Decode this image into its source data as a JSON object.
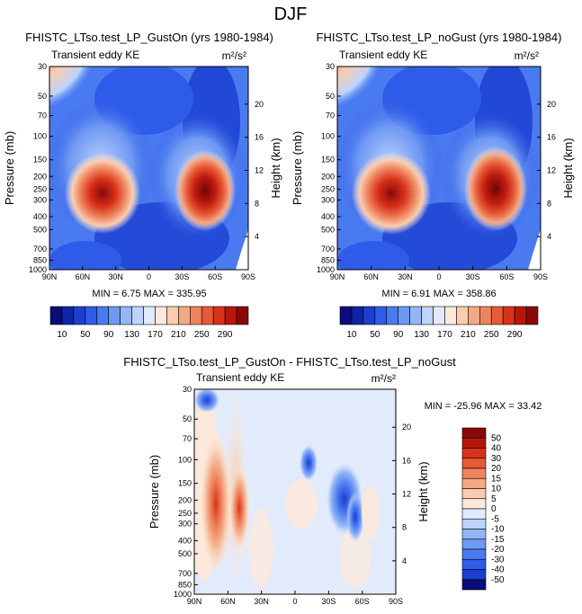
{
  "figure": {
    "title": "DJF"
  },
  "chart_data": [
    {
      "type": "heatmap",
      "panel_id": "gust_on",
      "title": "FHISTC_LTso.test_LP_GustOn (yrs 1980-1984)",
      "left_label": "Transient eddy KE",
      "units_label": "m²/s²",
      "ylabel": "Pressure (mb)",
      "ylabel_right": "Height (km)",
      "x_ticks": [
        "90N",
        "60N",
        "30N",
        "0",
        "30S",
        "60S",
        "90S"
      ],
      "y_ticks": [
        "30",
        "50",
        "70",
        "100",
        "150",
        "200",
        "250",
        "300",
        "400",
        "500",
        "700",
        "850",
        "1000"
      ],
      "y_ticks_right": [
        "20",
        "16",
        "12",
        "8",
        "4"
      ],
      "stats": "MIN = 6.75 MAX = 335.95",
      "features": [
        {
          "lat": 35,
          "pressure": 270,
          "value": 320
        },
        {
          "lat": -50,
          "pressure": 260,
          "value": 335
        },
        {
          "lat": 80,
          "pressure": 30,
          "value": 200
        }
      ]
    },
    {
      "type": "heatmap",
      "panel_id": "no_gust",
      "title": "FHISTC_LTso.test_LP_noGust (yrs 1980-1984)",
      "left_label": "Transient eddy KE",
      "units_label": "m²/s²",
      "ylabel": "Pressure (mb)",
      "ylabel_right": "Height (km)",
      "x_ticks": [
        "90N",
        "60N",
        "30N",
        "0",
        "30S",
        "60S",
        "90S"
      ],
      "y_ticks": [
        "30",
        "50",
        "70",
        "100",
        "150",
        "200",
        "250",
        "300",
        "400",
        "500",
        "700",
        "850",
        "1000"
      ],
      "y_ticks_right": [
        "20",
        "16",
        "12",
        "8",
        "4"
      ],
      "stats": "MIN = 6.91 MAX = 358.86",
      "features": [
        {
          "lat": 35,
          "pressure": 270,
          "value": 335
        },
        {
          "lat": -50,
          "pressure": 260,
          "value": 358
        },
        {
          "lat": 80,
          "pressure": 30,
          "value": 210
        }
      ]
    },
    {
      "type": "heatmap",
      "panel_id": "difference",
      "title": "FHISTC_LTso.test_LP_GustOn - FHISTC_LTso.test_LP_noGust",
      "left_label": "Transient eddy KE",
      "units_label": "m²/s²",
      "ylabel": "Pressure (mb)",
      "ylabel_right": "Height (km)",
      "x_ticks": [
        "90N",
        "60N",
        "30N",
        "0",
        "30S",
        "60S",
        "90S"
      ],
      "y_ticks": [
        "30",
        "50",
        "70",
        "100",
        "150",
        "200",
        "250",
        "300",
        "400",
        "500",
        "700",
        "850",
        "1000"
      ],
      "y_ticks_right": [
        "20",
        "16",
        "12",
        "8",
        "4"
      ],
      "stats": "MIN = -25.96 MAX = 33.42"
    }
  ],
  "colorbars": {
    "full": {
      "labels": [
        "10",
        "50",
        "90",
        "130",
        "170",
        "210",
        "250",
        "290"
      ],
      "colors": [
        "#0a0c77",
        "#0f24a6",
        "#1a3fd2",
        "#2e5be8",
        "#4a7af0",
        "#6d98f3",
        "#94b6f6",
        "#bdd3fa",
        "#e1ebfc",
        "#fde9dc",
        "#f9ccb0",
        "#f4a985",
        "#ee845d",
        "#e65a36",
        "#d9321a",
        "#b8160b",
        "#8a0808"
      ]
    },
    "diff": {
      "labels": [
        "50",
        "40",
        "30",
        "20",
        "15",
        "10",
        "5",
        "0",
        "-5",
        "-10",
        "-15",
        "-20",
        "-30",
        "-40",
        "-50"
      ],
      "colors": [
        "#8a0808",
        "#b8160b",
        "#d9321a",
        "#e65a36",
        "#ee845d",
        "#f4a985",
        "#f9ccb0",
        "#fde9dc",
        "#e1ebfc",
        "#bdd3fa",
        "#94b6f6",
        "#6d98f3",
        "#4a7af0",
        "#2e5be8",
        "#1a3fd2",
        "#0a0c77"
      ]
    }
  }
}
